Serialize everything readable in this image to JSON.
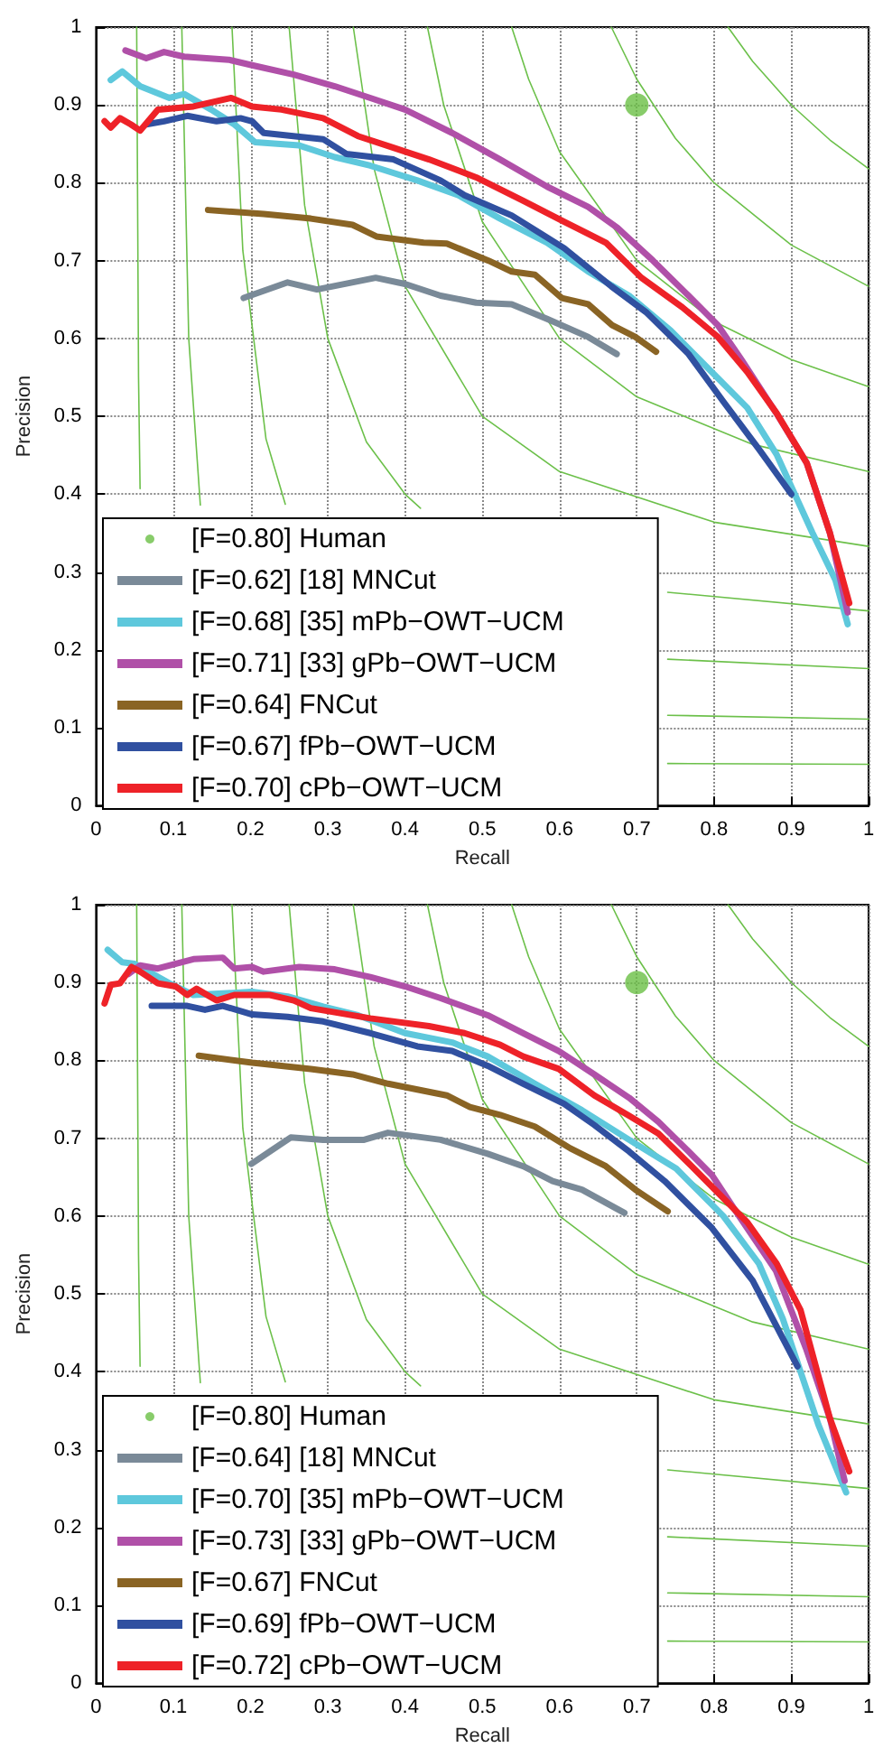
{
  "chart_data": [
    {
      "type": "line",
      "xlabel": "Recall",
      "ylabel": "Precision",
      "xlim": [
        0,
        1
      ],
      "ylim": [
        0,
        1
      ],
      "xticks": [
        0,
        0.1,
        0.2,
        0.3,
        0.4,
        0.5,
        0.6,
        0.7,
        0.8,
        0.9,
        1
      ],
      "yticks": [
        0,
        0.1,
        0.2,
        0.3,
        0.4,
        0.5,
        0.6,
        0.7,
        0.8,
        0.9,
        1
      ],
      "grid": true,
      "legend": "bottom left",
      "line_style": "solid",
      "marker": "none",
      "series": [
        {
          "color": "#6cc04a",
          "x": [
            0.0526,
            0.055,
            0.057,
            0.06,
            0.07,
            0.1,
            0.2,
            0.5,
            0.74,
            1
          ],
          "values": [
            1,
            0.55,
            0.407,
            null,
            null,
            null,
            null,
            null,
            0.054,
            0.053
          ]
        },
        {
          "color": "#6cc04a",
          "x": [
            0.111,
            0.12,
            0.135,
            0.14,
            0.2,
            0.3,
            0.5,
            0.74,
            1
          ],
          "values": [
            1,
            0.6,
            0.386,
            null,
            null,
            null,
            null,
            0.116,
            0.111
          ]
        },
        {
          "color": "#6cc04a",
          "x": [
            0.176,
            0.19,
            0.22,
            0.245,
            0.3,
            0.4,
            0.6,
            0.74,
            1
          ],
          "values": [
            1,
            0.713,
            0.471,
            0.387,
            null,
            null,
            null,
            0.188,
            0.176
          ]
        },
        {
          "color": "#6cc04a",
          "x": [
            0.25,
            0.27,
            0.3,
            0.35,
            0.4,
            0.42,
            0.5,
            0.7,
            0.74,
            1
          ],
          "values": [
            1,
            0.771,
            0.6,
            0.467,
            0.4,
            0.382,
            null,
            null,
            0.274,
            0.25
          ]
        },
        {
          "color": "#6cc04a",
          "x": [
            0.333,
            0.36,
            0.4,
            0.5,
            0.6,
            0.8,
            1
          ],
          "values": [
            1,
            0.818,
            0.667,
            0.5,
            0.429,
            0.364,
            0.333
          ]
        },
        {
          "color": "#6cc04a",
          "x": [
            0.429,
            0.45,
            0.5,
            0.6,
            0.7,
            0.85,
            1
          ],
          "values": [
            1,
            0.9,
            0.75,
            0.6,
            0.525,
            0.464,
            0.429
          ]
        },
        {
          "color": "#6cc04a",
          "x": [
            0.538,
            0.56,
            0.6,
            0.7,
            0.8,
            0.9,
            1
          ],
          "values": [
            1,
            0.933,
            0.84,
            0.7,
            0.622,
            0.573,
            0.538
          ]
        },
        {
          "color": "#6cc04a",
          "x": [
            0.667,
            0.7,
            0.75,
            0.8,
            0.9,
            1
          ],
          "values": [
            1,
            0.933,
            0.857,
            0.8,
            0.72,
            0.667
          ]
        },
        {
          "color": "#6cc04a",
          "x": [
            0.818,
            0.85,
            0.9,
            0.95,
            1
          ],
          "values": [
            1,
            0.956,
            0.9,
            0.855,
            0.818
          ]
        },
        {
          "name": "[F=0.80] Human",
          "type": "scatter",
          "marker": "circle",
          "color": "#6abf45",
          "x": [
            0.7
          ],
          "values": [
            0.9
          ]
        },
        {
          "name": "[F=0.62] [18] MNCut",
          "color": "#7a8a98",
          "x": [
            0.191,
            0.248,
            0.286,
            0.362,
            0.4,
            0.446,
            0.492,
            0.538,
            0.584,
            0.637,
            0.674
          ],
          "values": [
            0.652,
            0.672,
            0.663,
            0.678,
            0.67,
            0.655,
            0.646,
            0.644,
            0.625,
            0.602,
            0.58
          ]
        },
        {
          "name": "[F=0.68] [35] mPb−OWT−UCM",
          "color": "#5ec8dc",
          "x": [
            0.019,
            0.034,
            0.057,
            0.095,
            0.114,
            0.149,
            0.179,
            0.206,
            0.263,
            0.309,
            0.355,
            0.416,
            0.469,
            0.523,
            0.584,
            0.637,
            0.69,
            0.744,
            0.797,
            0.843,
            0.881,
            0.927,
            0.957,
            0.973
          ],
          "values": [
            0.932,
            0.943,
            0.924,
            0.909,
            0.914,
            0.894,
            0.875,
            0.852,
            0.848,
            0.833,
            0.822,
            0.803,
            0.784,
            0.754,
            0.723,
            0.686,
            0.655,
            0.61,
            0.557,
            0.511,
            0.451,
            0.351,
            0.29,
            0.233
          ]
        },
        {
          "name": "[F=0.71] [33] gPb−OWT−UCM",
          "color": "#b050a8",
          "x": [
            0.038,
            0.065,
            0.088,
            0.114,
            0.172,
            0.202,
            0.256,
            0.309,
            0.355,
            0.4,
            0.461,
            0.523,
            0.584,
            0.637,
            0.675,
            0.721,
            0.767,
            0.805,
            0.836,
            0.88,
            0.92,
            0.95,
            0.973
          ],
          "values": [
            0.97,
            0.96,
            0.968,
            0.962,
            0.958,
            0.951,
            0.939,
            0.924,
            0.909,
            0.894,
            0.864,
            0.83,
            0.795,
            0.769,
            0.742,
            0.7,
            0.655,
            0.617,
            0.572,
            0.505,
            0.44,
            0.35,
            0.248
          ]
        },
        {
          "name": "[F=0.64] FNCut",
          "color": "#8a6424",
          "x": [
            0.145,
            0.217,
            0.278,
            0.332,
            0.363,
            0.424,
            0.454,
            0.508,
            0.538,
            0.568,
            0.603,
            0.637,
            0.668,
            0.698,
            0.725
          ],
          "values": [
            0.765,
            0.76,
            0.754,
            0.746,
            0.731,
            0.723,
            0.722,
            0.7,
            0.686,
            0.682,
            0.652,
            0.644,
            0.617,
            0.602,
            0.583
          ]
        },
        {
          "name": "[F=0.67] fPb−OWT−UCM",
          "color": "#3050a0",
          "x": [
            0.065,
            0.088,
            0.118,
            0.156,
            0.187,
            0.202,
            0.217,
            0.294,
            0.324,
            0.385,
            0.446,
            0.477,
            0.538,
            0.606,
            0.667,
            0.713,
            0.767,
            0.812,
            0.858,
            0.9
          ],
          "values": [
            0.875,
            0.879,
            0.886,
            0.879,
            0.883,
            0.879,
            0.864,
            0.856,
            0.837,
            0.83,
            0.803,
            0.784,
            0.758,
            0.716,
            0.667,
            0.633,
            0.58,
            0.519,
            0.458,
            0.4
          ]
        },
        {
          "name": "[F=0.70] cPb−OWT−UCM",
          "color": "#ee2228",
          "x": [
            0.011,
            0.019,
            0.031,
            0.045,
            0.057,
            0.08,
            0.126,
            0.175,
            0.202,
            0.24,
            0.294,
            0.339,
            0.385,
            0.431,
            0.492,
            0.553,
            0.606,
            0.66,
            0.706,
            0.759,
            0.805,
            0.843,
            0.881,
            0.92,
            0.95,
            0.975
          ],
          "values": [
            0.879,
            0.871,
            0.883,
            0.875,
            0.867,
            0.894,
            0.898,
            0.909,
            0.898,
            0.894,
            0.883,
            0.86,
            0.845,
            0.83,
            0.807,
            0.777,
            0.75,
            0.723,
            0.678,
            0.64,
            0.602,
            0.557,
            0.504,
            0.44,
            0.35,
            0.26
          ]
        }
      ]
    },
    {
      "type": "line",
      "xlabel": "Recall",
      "ylabel": "Precision",
      "xlim": [
        0,
        1
      ],
      "ylim": [
        0,
        1
      ],
      "xticks": [
        0,
        0.1,
        0.2,
        0.3,
        0.4,
        0.5,
        0.6,
        0.7,
        0.8,
        0.9,
        1
      ],
      "yticks": [
        0,
        0.1,
        0.2,
        0.3,
        0.4,
        0.5,
        0.6,
        0.7,
        0.8,
        0.9,
        1
      ],
      "grid": true,
      "legend": "bottom left",
      "line_style": "solid",
      "marker": "none",
      "series": [
        {
          "color": "#6cc04a",
          "x": [
            0.0526,
            0.055,
            0.057,
            0.06,
            0.07,
            0.1,
            0.2,
            0.5,
            0.74,
            1
          ],
          "values": [
            1,
            0.55,
            0.407,
            null,
            null,
            null,
            null,
            null,
            0.054,
            0.053
          ]
        },
        {
          "color": "#6cc04a",
          "x": [
            0.111,
            0.12,
            0.135,
            0.14,
            0.2,
            0.3,
            0.5,
            0.74,
            1
          ],
          "values": [
            1,
            0.6,
            0.386,
            null,
            null,
            null,
            null,
            0.116,
            0.111
          ]
        },
        {
          "color": "#6cc04a",
          "x": [
            0.176,
            0.19,
            0.22,
            0.245,
            0.3,
            0.4,
            0.6,
            0.74,
            1
          ],
          "values": [
            1,
            0.713,
            0.471,
            0.387,
            null,
            null,
            null,
            0.188,
            0.176
          ]
        },
        {
          "color": "#6cc04a",
          "x": [
            0.25,
            0.27,
            0.3,
            0.35,
            0.4,
            0.42,
            0.5,
            0.7,
            0.74,
            1
          ],
          "values": [
            1,
            0.771,
            0.6,
            0.467,
            0.4,
            0.382,
            null,
            null,
            0.274,
            0.25
          ]
        },
        {
          "color": "#6cc04a",
          "x": [
            0.333,
            0.36,
            0.4,
            0.5,
            0.6,
            0.8,
            1
          ],
          "values": [
            1,
            0.818,
            0.667,
            0.5,
            0.429,
            0.364,
            0.333
          ]
        },
        {
          "color": "#6cc04a",
          "x": [
            0.429,
            0.45,
            0.5,
            0.6,
            0.7,
            0.85,
            1
          ],
          "values": [
            1,
            0.9,
            0.75,
            0.6,
            0.525,
            0.464,
            0.429
          ]
        },
        {
          "color": "#6cc04a",
          "x": [
            0.538,
            0.56,
            0.6,
            0.7,
            0.8,
            0.9,
            1
          ],
          "values": [
            1,
            0.933,
            0.84,
            0.7,
            0.622,
            0.573,
            0.538
          ]
        },
        {
          "color": "#6cc04a",
          "x": [
            0.667,
            0.7,
            0.75,
            0.8,
            0.9,
            1
          ],
          "values": [
            1,
            0.933,
            0.857,
            0.8,
            0.72,
            0.667
          ]
        },
        {
          "color": "#6cc04a",
          "x": [
            0.818,
            0.85,
            0.9,
            0.95,
            1
          ],
          "values": [
            1,
            0.956,
            0.9,
            0.855,
            0.818
          ]
        },
        {
          "name": "[F=0.80] Human",
          "type": "scatter",
          "marker": "circle",
          "color": "#6abf45",
          "x": [
            0.7
          ],
          "values": [
            0.9
          ]
        },
        {
          "name": "[F=0.64] [18] MNCut",
          "color": "#7a8a98",
          "x": [
            0.201,
            0.252,
            0.294,
            0.347,
            0.378,
            0.446,
            0.507,
            0.553,
            0.591,
            0.629,
            0.684
          ],
          "values": [
            0.667,
            0.701,
            0.698,
            0.698,
            0.707,
            0.698,
            0.68,
            0.664,
            0.645,
            0.634,
            0.604
          ]
        },
        {
          "name": "[F=0.70] [35] mPb−OWT−UCM",
          "color": "#5ec8dc",
          "x": [
            0.015,
            0.034,
            0.05,
            0.095,
            0.126,
            0.202,
            0.248,
            0.294,
            0.339,
            0.4,
            0.461,
            0.507,
            0.568,
            0.629,
            0.69,
            0.751,
            0.812,
            0.858,
            0.889,
            0.935,
            0.971
          ],
          "values": [
            0.942,
            0.926,
            0.924,
            0.899,
            0.884,
            0.888,
            0.882,
            0.869,
            0.858,
            0.835,
            0.823,
            0.805,
            0.77,
            0.736,
            0.698,
            0.661,
            0.6,
            0.539,
            0.468,
            0.332,
            0.245
          ]
        },
        {
          "name": "[F=0.73] [33] gPb−OWT−UCM",
          "color": "#b050a8",
          "x": [
            0.042,
            0.057,
            0.08,
            0.126,
            0.164,
            0.179,
            0.202,
            0.217,
            0.263,
            0.309,
            0.355,
            0.4,
            0.446,
            0.507,
            0.553,
            0.599,
            0.645,
            0.69,
            0.728,
            0.767,
            0.797,
            0.827,
            0.88,
            0.919,
            0.95,
            0.969
          ],
          "values": [
            0.911,
            0.922,
            0.918,
            0.93,
            0.932,
            0.918,
            0.92,
            0.914,
            0.92,
            0.917,
            0.907,
            0.895,
            0.88,
            0.858,
            0.835,
            0.812,
            0.782,
            0.752,
            0.721,
            0.683,
            0.653,
            0.608,
            0.53,
            0.43,
            0.34,
            0.26
          ]
        },
        {
          "name": "[F=0.67] FNCut",
          "color": "#8a6424",
          "x": [
            0.133,
            0.202,
            0.278,
            0.332,
            0.378,
            0.454,
            0.484,
            0.523,
            0.568,
            0.614,
            0.66,
            0.698,
            0.74
          ],
          "values": [
            0.806,
            0.797,
            0.789,
            0.782,
            0.77,
            0.755,
            0.74,
            0.73,
            0.715,
            0.687,
            0.664,
            0.634,
            0.606
          ]
        },
        {
          "name": "[F=0.69] fPb−OWT−UCM",
          "color": "#3050a0",
          "x": [
            0.072,
            0.118,
            0.141,
            0.164,
            0.202,
            0.248,
            0.294,
            0.355,
            0.416,
            0.461,
            0.507,
            0.553,
            0.606,
            0.645,
            0.69,
            0.736,
            0.797,
            0.85,
            0.908
          ],
          "values": [
            0.87,
            0.87,
            0.865,
            0.87,
            0.859,
            0.856,
            0.85,
            0.835,
            0.818,
            0.812,
            0.793,
            0.77,
            0.744,
            0.717,
            0.683,
            0.645,
            0.585,
            0.517,
            0.407
          ]
        },
        {
          "name": "[F=0.72] cPb−OWT−UCM",
          "color": "#ee2228",
          "x": [
            0.011,
            0.019,
            0.031,
            0.046,
            0.057,
            0.08,
            0.103,
            0.118,
            0.13,
            0.156,
            0.179,
            0.225,
            0.256,
            0.278,
            0.355,
            0.431,
            0.477,
            0.523,
            0.553,
            0.599,
            0.645,
            0.69,
            0.728,
            0.767,
            0.805,
            0.843,
            0.881,
            0.912,
            0.95,
            0.975
          ],
          "values": [
            0.873,
            0.897,
            0.899,
            0.92,
            0.914,
            0.899,
            0.895,
            0.884,
            0.892,
            0.877,
            0.884,
            0.884,
            0.877,
            0.867,
            0.854,
            0.844,
            0.835,
            0.82,
            0.805,
            0.789,
            0.755,
            0.729,
            0.706,
            0.668,
            0.63,
            0.592,
            0.539,
            0.479,
            0.34,
            0.272
          ]
        }
      ]
    }
  ]
}
